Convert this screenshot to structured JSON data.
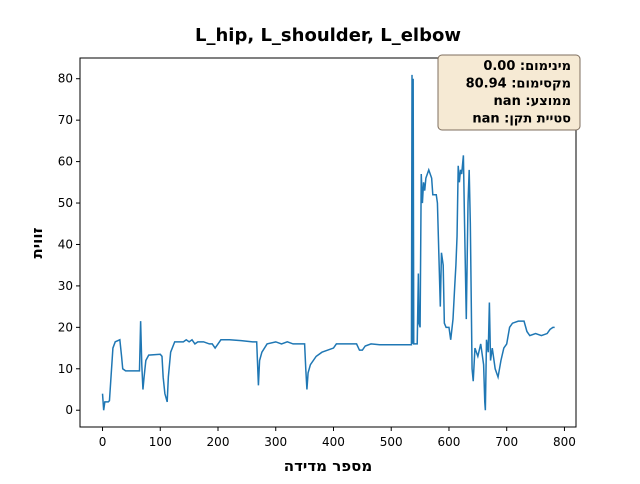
{
  "chart_data": {
    "type": "line",
    "title": "L_hip, L_shoulder, L_elbow",
    "x_label": "מספר מדידה",
    "y_label": "זווית",
    "annotation": [
      "מינימום: 0.00",
      "מקסימום: 80.94",
      "ממוצע: nan",
      "סטיית תקן: nan"
    ],
    "series": [
      {
        "color": "#1f77b4",
        "x": [
          0,
          2,
          4,
          10,
          12,
          18,
          22,
          30,
          33,
          35,
          40,
          60,
          64,
          66,
          68,
          70,
          72,
          75,
          80,
          100,
          103,
          105,
          108,
          112,
          114,
          118,
          125,
          140,
          145,
          150,
          155,
          160,
          165,
          175,
          185,
          190,
          195,
          200,
          205,
          220,
          240,
          260,
          267,
          270,
          272,
          276,
          285,
          300,
          310,
          320,
          330,
          350,
          352,
          354,
          356,
          360,
          370,
          380,
          400,
          405,
          430,
          440,
          445,
          450,
          455,
          465,
          480,
          500,
          530,
          535,
          536,
          537,
          538,
          539,
          545,
          547,
          548,
          550,
          552,
          554,
          556,
          558,
          560,
          565,
          570,
          572,
          578,
          580,
          585,
          587,
          590,
          592,
          595,
          600,
          603,
          607,
          610,
          612,
          614,
          616,
          618,
          620,
          622,
          625,
          627,
          630,
          633,
          635,
          637,
          640,
          642,
          645,
          650,
          655,
          660,
          662,
          663,
          665,
          668,
          670,
          672,
          675,
          680,
          685,
          690,
          695,
          700,
          705,
          710,
          720,
          730,
          735,
          740,
          750,
          760,
          770,
          775,
          780,
          783
        ],
        "values": [
          4,
          0,
          2,
          2,
          2.3,
          15,
          16.5,
          17,
          13,
          10,
          9.5,
          9.5,
          9.5,
          21.5,
          11,
          5,
          8,
          12,
          13.3,
          13.5,
          13,
          8,
          4,
          2,
          8,
          14,
          16.5,
          16.5,
          17,
          16.5,
          17,
          16,
          16.5,
          16.5,
          16,
          16,
          15,
          16,
          17,
          17,
          16.8,
          16.5,
          16.5,
          6,
          12,
          14,
          16,
          16.5,
          16,
          16.5,
          16,
          16,
          10,
          5,
          9,
          11,
          13,
          14,
          15,
          16,
          16,
          16,
          14.5,
          14.5,
          15.5,
          16,
          15.8,
          15.8,
          15.8,
          15.8,
          80.94,
          16,
          80,
          16,
          16,
          33,
          21,
          20,
          57,
          50,
          55,
          53,
          56,
          58,
          56,
          52,
          52,
          50,
          25,
          38,
          35,
          21,
          20,
          20,
          17,
          22,
          30,
          35,
          42,
          59,
          55,
          58,
          57,
          61.5,
          45,
          22,
          50,
          58,
          45,
          10,
          7,
          15,
          13,
          16,
          11,
          2,
          0,
          17,
          14,
          26,
          12,
          15,
          10,
          8,
          12,
          15,
          16,
          20,
          21,
          21.5,
          21.5,
          19,
          18,
          18.5,
          18,
          18.5,
          19.5,
          20,
          20
        ]
      }
    ],
    "xlim": [
      -39,
      820
    ],
    "ylim": [
      -4.05,
      85
    ],
    "xticks": [
      0,
      100,
      200,
      300,
      400,
      500,
      600,
      700,
      800
    ],
    "yticks": [
      0,
      10,
      20,
      30,
      40,
      50,
      60,
      70,
      80
    ]
  }
}
